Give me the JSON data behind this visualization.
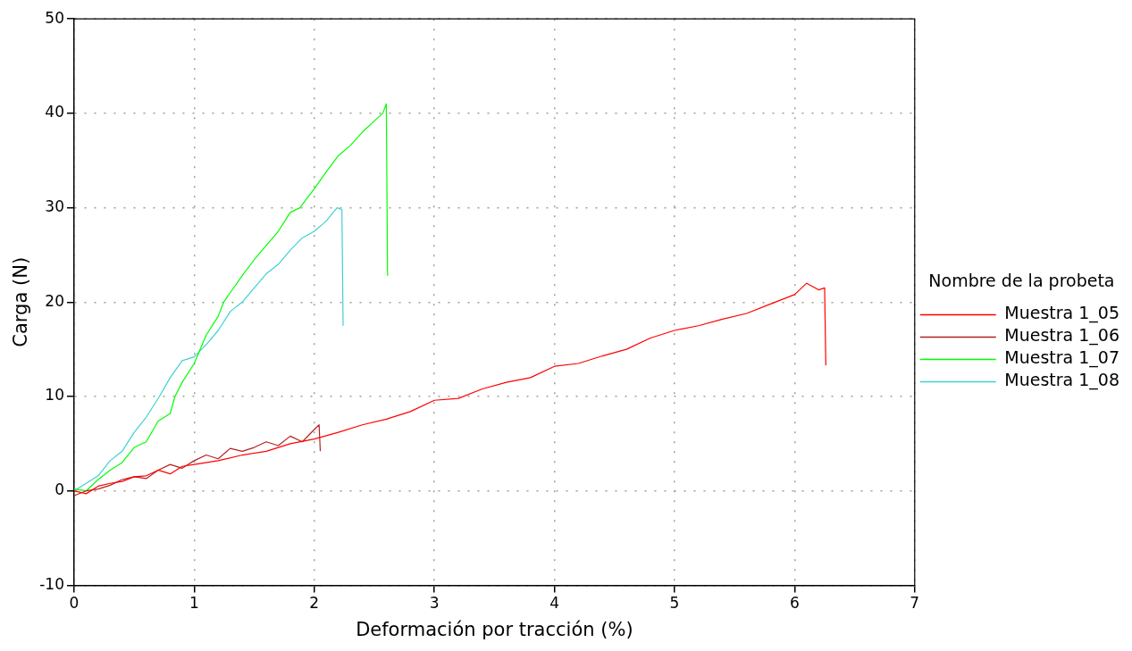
{
  "chart_data": {
    "type": "line",
    "xlabel": "Deformación por tracción (%)",
    "ylabel": "Carga (N)",
    "legend_title": "Nombre de la probeta",
    "xlim": [
      0,
      7
    ],
    "xticks": [
      0,
      1,
      2,
      3,
      4,
      5,
      6,
      7
    ],
    "ylim": [
      -10,
      50
    ],
    "yticks": [
      -10,
      0,
      10,
      20,
      30,
      40,
      50
    ],
    "grid": true,
    "legend": "right",
    "marker": "none",
    "line_style": "solid",
    "series": [
      {
        "name": "Muestra 1_05",
        "color": "#ff0000",
        "x": [
          0,
          0.1,
          0.2,
          0.3,
          0.4,
          0.5,
          0.6,
          0.7,
          0.8,
          0.9,
          1.0,
          1.2,
          1.4,
          1.6,
          1.8,
          2.0,
          2.2,
          2.4,
          2.6,
          2.8,
          3.0,
          3.2,
          3.4,
          3.6,
          3.8,
          4.0,
          4.2,
          4.4,
          4.6,
          4.8,
          5.0,
          5.2,
          5.4,
          5.6,
          5.8,
          6.0,
          6.1,
          6.2,
          6.25,
          6.26
        ],
        "values": [
          0,
          -0.3,
          0.5,
          0.8,
          1.0,
          1.5,
          1.6,
          2.2,
          1.8,
          2.6,
          2.8,
          3.2,
          3.8,
          4.2,
          5.0,
          5.5,
          6.2,
          7.0,
          7.6,
          8.4,
          9.6,
          9.8,
          10.8,
          11.5,
          12.0,
          13.2,
          13.5,
          14.3,
          15.0,
          16.2,
          17.0,
          17.5,
          18.2,
          18.8,
          19.8,
          20.8,
          22.0,
          21.3,
          21.5,
          13.3
        ]
      },
      {
        "name": "Muestra 1_06",
        "color": "#b22222",
        "x": [
          0,
          0.1,
          0.2,
          0.3,
          0.4,
          0.5,
          0.6,
          0.7,
          0.8,
          0.9,
          1.0,
          1.1,
          1.2,
          1.3,
          1.4,
          1.5,
          1.6,
          1.7,
          1.8,
          1.9,
          2.0,
          2.04,
          2.05
        ],
        "values": [
          -0.5,
          0,
          0.2,
          0.6,
          1.2,
          1.5,
          1.3,
          2.2,
          2.8,
          2.4,
          3.2,
          3.8,
          3.4,
          4.5,
          4.2,
          4.6,
          5.2,
          4.8,
          5.8,
          5.2,
          6.5,
          7.0,
          4.2
        ]
      },
      {
        "name": "Muestra 1_07",
        "color": "#00ff00",
        "x": [
          0,
          0.1,
          0.2,
          0.3,
          0.4,
          0.5,
          0.6,
          0.7,
          0.8,
          0.84,
          0.9,
          1.0,
          1.1,
          1.2,
          1.245,
          1.3,
          1.4,
          1.5,
          1.6,
          1.7,
          1.8,
          1.88,
          2.0,
          2.1,
          2.2,
          2.3,
          2.4,
          2.5,
          2.57,
          2.6,
          2.61
        ],
        "values": [
          0.2,
          0,
          1.2,
          2.2,
          3.0,
          4.6,
          5.2,
          7.4,
          8.2,
          10.0,
          11.5,
          13.5,
          16.5,
          18.5,
          20.0,
          21.0,
          22.8,
          24.5,
          26.0,
          27.5,
          29.5,
          30.0,
          32.0,
          33.8,
          35.5,
          36.6,
          38.0,
          39.2,
          40.0,
          41.0,
          22.8
        ]
      },
      {
        "name": "Muestra 1_08",
        "color": "#40d0d0",
        "x": [
          0,
          0.1,
          0.2,
          0.3,
          0.4,
          0.5,
          0.6,
          0.71,
          0.8,
          0.9,
          1.0,
          1.1,
          1.2,
          1.3,
          1.4,
          1.5,
          1.6,
          1.7,
          1.8,
          1.9,
          2.0,
          2.1,
          2.19,
          2.23,
          2.24
        ],
        "values": [
          0,
          0.8,
          1.6,
          3.2,
          4.2,
          6.2,
          7.8,
          10.0,
          12.0,
          13.8,
          14.2,
          15.5,
          17.0,
          19.0,
          20.0,
          21.5,
          23.0,
          24.0,
          25.5,
          26.8,
          27.5,
          28.6,
          30.0,
          29.8,
          17.5
        ]
      }
    ]
  }
}
